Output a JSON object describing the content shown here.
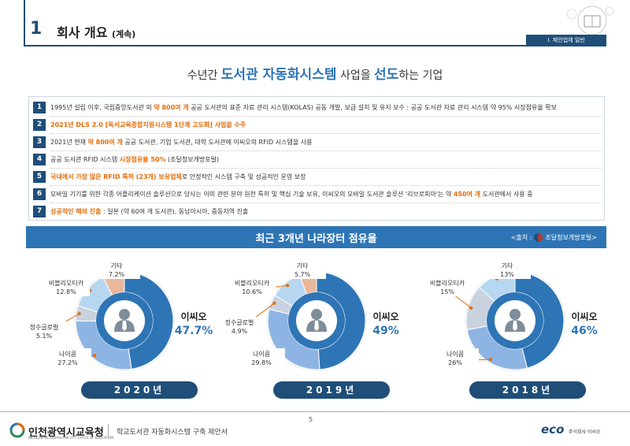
{
  "header": {
    "number": "1",
    "title": "회사 개요",
    "subtitle": "(계속)",
    "tag": "I. 제안업체 일반"
  },
  "headline": {
    "pre": "수년간",
    "highlight1": "도서관 자동화시스템",
    "mid": "사업을",
    "highlight2": "선도",
    "post": "하는 기업"
  },
  "points": [
    {
      "num": "1",
      "a": "1995년 설립 이후, 국립중앙도서관 외 ",
      "b": "약 800여 개",
      "c": " 공공 도서관의 표준 자료 관리 시스템(KOLAS) 공동 개발, 보급 설치  및 유지 보수 : 공공 도서관 자료 관리 시스템 약 95% 시장점유율 확보"
    },
    {
      "num": "2",
      "all": "2021년 DLS 2.0 [독서교육종합지원시스템 1단계 고도화] 사업을 수주"
    },
    {
      "num": "3",
      "a": "2021년 현재 ",
      "b": "약 800여 개",
      "c": " 공공 도서관, 기업 도서관, 대학 도서관에 이씨오의 RFID 시스템을 사용"
    },
    {
      "num": "4",
      "a": "공공 도서관 RFID 시스템 ",
      "b": "시장점유율 50%",
      "c": " (조달청보개방포털)"
    },
    {
      "num": "5",
      "b": "국내에서 가장 많은 RFID 특허 (23개) 보유업체",
      "c": "로 안정적인 시스템 구축 및 성공적인 운영 보장"
    },
    {
      "num": "6",
      "a": "모바일 기기를 위한 각종 어플리케이션 솔루션으로 당사는 이미 관련 분야 원천 특허 및 핵심 기술 보유, 이씨오의  모바일 도서관 솔루션 '리브로피아'는 약 ",
      "b": "450여 개",
      "c": " 도서관에서 사용 중"
    },
    {
      "num": "7",
      "b": "성공적인 해외 진출",
      "c": " : 일본 (약 60여 개 도서관), 동남아시아, 중동지역 진출"
    }
  ],
  "banner": {
    "title": "최근 3개년 나라장터 점유율",
    "source_pre": "<출처 :",
    "source_name": "조달청보개방포털>"
  },
  "chart_data": [
    {
      "type": "pie",
      "year": "2020년",
      "categories": [
        "이씨오",
        "나이콤",
        "정수글로벌",
        "비블리오티카",
        "기타"
      ],
      "values": [
        47.7,
        27.2,
        5.1,
        12.8,
        7.2
      ],
      "labels": [
        "이씨오",
        "나이콤",
        "정수글로벌",
        "비블리오티카",
        "기타"
      ],
      "value_labels": [
        "47.7%",
        "27.2%",
        "5.1%",
        "12.8%",
        "7.2%"
      ],
      "colors": [
        "#2e75b6",
        "#8eb4e3",
        "#c9d3df",
        "#b7d7f0",
        "#e9b79a"
      ]
    },
    {
      "type": "pie",
      "year": "2019년",
      "categories": [
        "이씨오",
        "나이콤",
        "정수글로벌",
        "비블리오티카",
        "기타"
      ],
      "values": [
        49,
        29.8,
        4.9,
        10.6,
        5.7
      ],
      "labels": [
        "이씨오",
        "나이콤",
        "정수글로벌",
        "비블리오티카",
        "기타"
      ],
      "value_labels": [
        "49%",
        "29.8%",
        "4.9%",
        "10.6%",
        "5.7%"
      ],
      "colors": [
        "#2e75b6",
        "#8eb4e3",
        "#c9d3df",
        "#b7d7f0",
        "#e9b79a"
      ]
    },
    {
      "type": "pie",
      "year": "2018년",
      "categories": [
        "이씨오",
        "나이콤",
        "비블리오티카",
        "기타"
      ],
      "values": [
        46,
        26,
        15,
        13
      ],
      "labels": [
        "이씨오",
        "나이콤",
        "비블리오티카",
        "기타"
      ],
      "value_labels": [
        "46%",
        "26%",
        "15%",
        "13%"
      ],
      "colors": [
        "#2e75b6",
        "#8eb4e3",
        "#c9d3df",
        "#b7d7f0"
      ]
    }
  ],
  "footer": {
    "page": "5",
    "org": "인천광역시교육청",
    "org_en": "INCHEON METROPOLITAN CITY OFFICE OF EDUCATION",
    "doc": "학교도서관 자동화시스템 구축 제안서",
    "brand": "eco",
    "brand_sub": "주식회사 이씨오"
  }
}
